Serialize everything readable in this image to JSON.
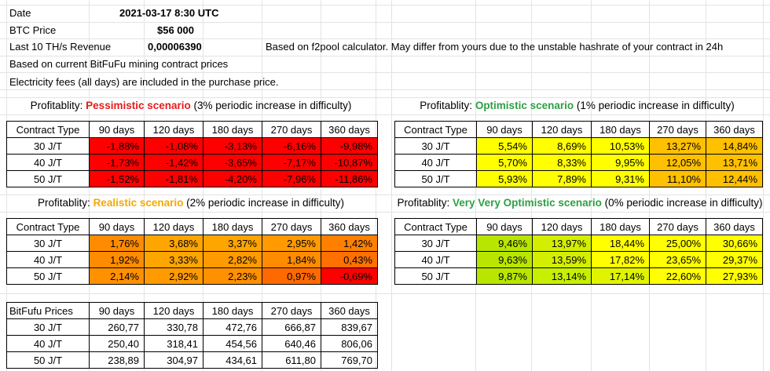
{
  "header": {
    "date_label": "Date",
    "date_value": "2021-03-17 8:30  UTC",
    "btc_label": "BTC Price",
    "btc_value": "$56 000",
    "revenue_label": "Last 10 TH/s Revenue",
    "revenue_value": "0,00006390",
    "revenue_note": "Based on f2pool calculator. May differ from yours due to the unstable hashrate of your contract in 24h",
    "note1": "Based on current BitFuFu mining contract prices",
    "note2": "Electricity fees (all days) are included in the purchase price."
  },
  "columns": [
    "90 days",
    "120 days",
    "180 days",
    "270 days",
    "360 days"
  ],
  "rows": [
    "30 J/T",
    "40 J/T",
    "50 J/T"
  ],
  "colors": {
    "red": "#ff0000",
    "orange_dark": "#ff8800",
    "orange": "#ffa500",
    "yellow_orange": "#ffc000",
    "yellow": "#ffff00",
    "yellow_green": "#c6f000",
    "lime": "#a8e600",
    "grid_line": "#e3e3e3"
  },
  "pessimistic": {
    "prefix": "Profitablity: ",
    "name": "Pessimistic scenario",
    "suffix": " (3% periodic increase in difficulty)",
    "header": "Contract Type",
    "values": [
      [
        "-1,88%",
        "-1,08%",
        "-3,13%",
        "-6,16%",
        "-9,98%"
      ],
      [
        "-1,73%",
        "-1,42%",
        "-3,65%",
        "-7,17%",
        "-10,87%"
      ],
      [
        "-1,52%",
        "-1,81%",
        "-4,20%",
        "-7,96%",
        "-11,86%"
      ]
    ]
  },
  "optimistic": {
    "prefix": "Profitablity: ",
    "name": "Optimistic scenario",
    "suffix": " (1% periodic increase in difficulty)",
    "header": "Contract Type",
    "values": [
      [
        "5,54%",
        "8,69%",
        "10,53%",
        "13,27%",
        "14,84%"
      ],
      [
        "5,70%",
        "8,33%",
        "9,95%",
        "12,05%",
        "13,71%"
      ],
      [
        "5,93%",
        "7,89%",
        "9,31%",
        "11,10%",
        "12,44%"
      ]
    ]
  },
  "realistic": {
    "prefix": "Profitablity: ",
    "name": "Realistic scenario",
    "suffix": " (2% periodic increase in difficulty)",
    "header": "Contract Type",
    "values": [
      [
        "1,76%",
        "3,68%",
        "3,37%",
        "2,95%",
        "1,42%"
      ],
      [
        "1,92%",
        "3,33%",
        "2,82%",
        "1,84%",
        "0,43%"
      ],
      [
        "2,14%",
        "2,92%",
        "2,23%",
        "0,97%",
        "-0,69%"
      ]
    ]
  },
  "very_optimistic": {
    "prefix": "Profitablity: ",
    "name": "Very Very Optimistic scenario",
    "suffix": " (0% periodic increase in difficulty)",
    "header": "Contract Type",
    "values": [
      [
        "9,46%",
        "13,97%",
        "18,44%",
        "25,00%",
        "30,66%"
      ],
      [
        "9,63%",
        "13,59%",
        "17,82%",
        "23,65%",
        "29,37%"
      ],
      [
        "9,87%",
        "13,14%",
        "17,14%",
        "22,60%",
        "27,93%"
      ]
    ]
  },
  "prices": {
    "header": "BitFufu Prices",
    "values": [
      [
        "260,77",
        "330,78",
        "472,76",
        "666,87",
        "839,67"
      ],
      [
        "250,40",
        "318,41",
        "454,56",
        "640,46",
        "806,06"
      ],
      [
        "238,89",
        "304,97",
        "434,61",
        "611,80",
        "769,70"
      ]
    ]
  }
}
